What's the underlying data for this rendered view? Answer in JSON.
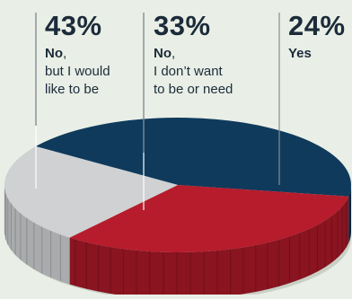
{
  "chart_data": {
    "type": "pie",
    "style": "3d-exploded-tilted",
    "slices": [
      {
        "label": "No",
        "suffix": ",",
        "description_lines": [
          "but I would",
          "like to be"
        ],
        "value": 43,
        "value_label": "43%",
        "color": "#0f3a5c",
        "side_color": "#0a2b46"
      },
      {
        "label": "No",
        "suffix": ",",
        "description_lines": [
          "I don’t want",
          "to be or need"
        ],
        "value": 33,
        "value_label": "33%",
        "color": "#b71c2c",
        "side_color": "#8a1420"
      },
      {
        "label": "Yes",
        "suffix": "",
        "description_lines": [],
        "value": 24,
        "value_label": "24%",
        "color": "#cfd1d3",
        "side_color": "#a9abad"
      }
    ]
  }
}
